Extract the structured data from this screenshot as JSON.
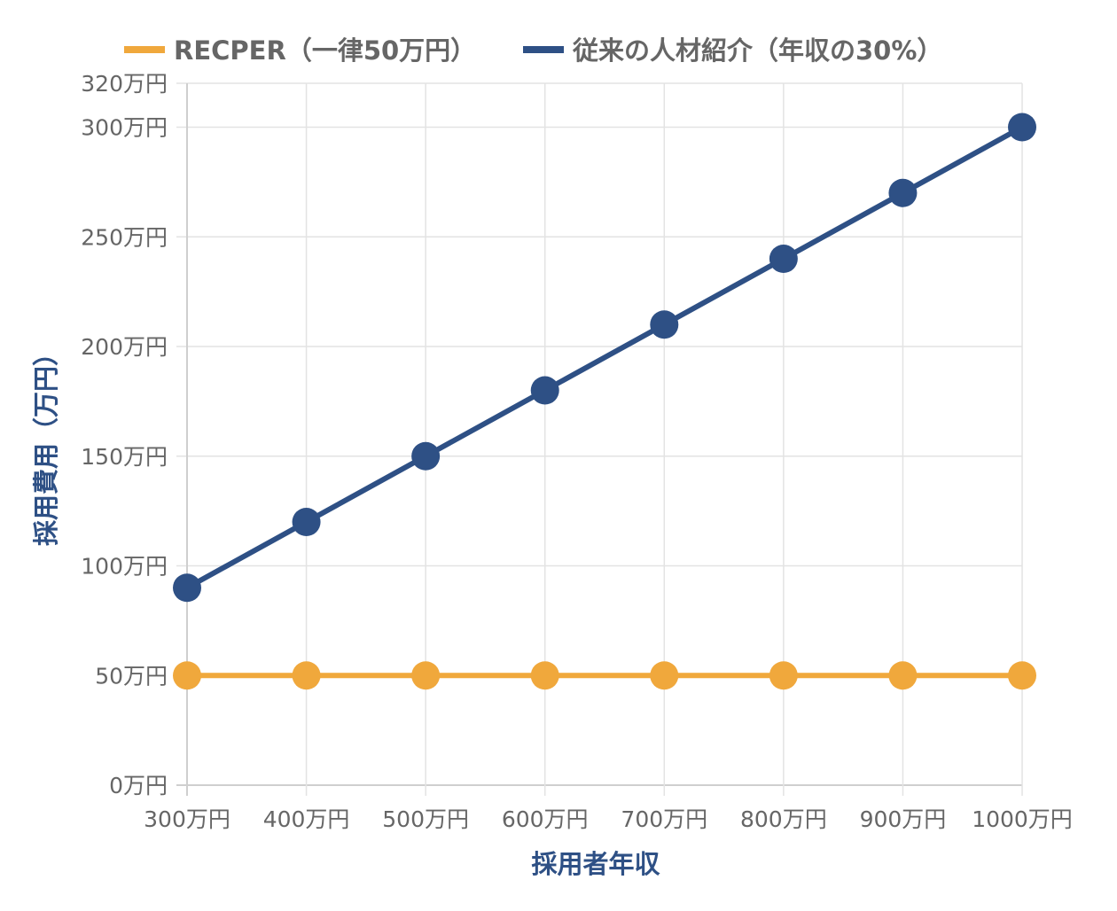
{
  "chart_data": {
    "type": "line",
    "categories": [
      "300万円",
      "400万円",
      "500万円",
      "600万円",
      "700万円",
      "800万円",
      "900万円",
      "1000万円"
    ],
    "series": [
      {
        "name": "RECPER（一律50万円）",
        "values": [
          50,
          50,
          50,
          50,
          50,
          50,
          50,
          50
        ],
        "color": "#f0a83c"
      },
      {
        "name": "従来の人材紹介（年収の30%）",
        "values": [
          90,
          120,
          150,
          180,
          210,
          240,
          270,
          300
        ],
        "color": "#2e5085"
      }
    ],
    "y_ticks": [
      {
        "value": 0,
        "label": "0万円"
      },
      {
        "value": 50,
        "label": "50万円"
      },
      {
        "value": 100,
        "label": "100万円"
      },
      {
        "value": 150,
        "label": "150万円"
      },
      {
        "value": 200,
        "label": "200万円"
      },
      {
        "value": 250,
        "label": "250万円"
      },
      {
        "value": 300,
        "label": "300万円"
      },
      {
        "value": 320,
        "label": "320万円"
      }
    ],
    "ylim": [
      0,
      320
    ],
    "xlabel": "採用者年収",
    "ylabel": "採用費用（万円）",
    "axis_title_color": "#2e5085",
    "legend_position": "top",
    "grid": true
  }
}
